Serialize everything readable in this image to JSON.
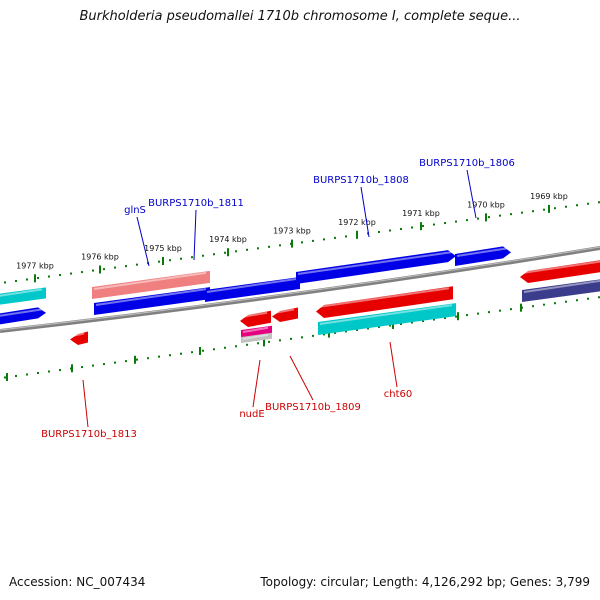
{
  "title": "Burkholderia pseudomallei 1710b chromosome I, complete seque...",
  "footer": {
    "accession": "Accession: NC_007434",
    "summary": "Topology: circular; Length: 4,126,292 bp; Genes: 3,799"
  },
  "ticks": [
    "1977 kbp",
    "1976 kbp",
    "1975 kbp",
    "1974 kbp",
    "1973 kbp",
    "1972 kbp",
    "1971 kbp",
    "1970 kbp",
    "1969 kbp"
  ],
  "labels": {
    "top": [
      "glnS",
      "BURPS1710b_1811",
      "BURPS1710b_1808",
      "BURPS1710b_1806"
    ],
    "bottom": [
      "BURPS1710b_1813",
      "nudE",
      "BURPS1710b_1809",
      "cht60"
    ]
  },
  "colors": {
    "forward_gene": "#0000e6",
    "reverse_gene": "#e60000",
    "forward_label": "#0000cc",
    "reverse_label": "#cc0000",
    "cyan_feature": "#00c8c8",
    "pink_feature": "#f08080",
    "magenta_feature": "#e60080",
    "navy_feature": "#3c3c8c",
    "tick": "#0a7a0a",
    "backbone": "#808080"
  }
}
